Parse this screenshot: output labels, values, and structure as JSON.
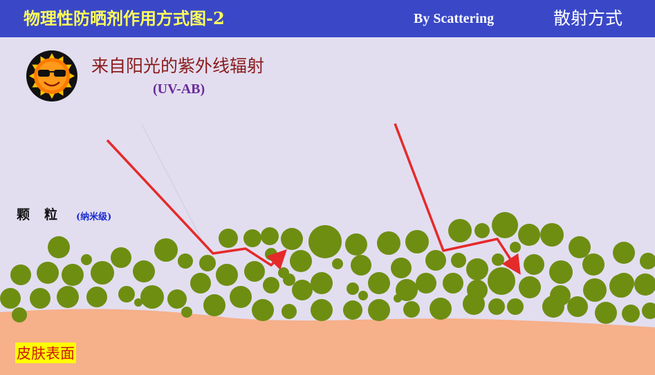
{
  "header": {
    "title": "物理性防晒剂作用方式图-2",
    "scatter_en": "By Scattering",
    "scatter_cn": "散射方式"
  },
  "uv": {
    "title": "来自阳光的紫外线辐射",
    "subtitle": "(UV-AB)"
  },
  "particles": {
    "label": "颗　粒",
    "size_note": "(纳米级)"
  },
  "skin": {
    "label": "皮肤表面"
  },
  "icons": {
    "sun": "sun-with-sunglasses-icon"
  },
  "colors": {
    "header_bg": "#3a48c8",
    "title": "#ffff5a",
    "background": "#e2def0",
    "particle": "#6e8e12",
    "skin": "#f6b08a",
    "ray": "#e52a2a",
    "skin_label_bg": "#ffff00",
    "skin_label_text": "#d0180c"
  }
}
